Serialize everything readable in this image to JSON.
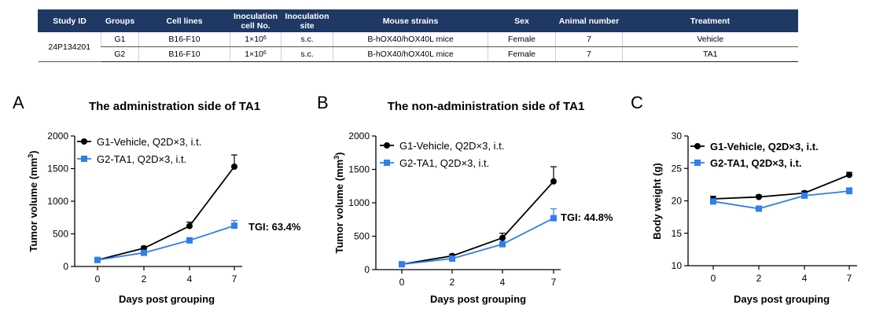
{
  "table": {
    "headers": [
      "Study ID",
      "Groups",
      "Cell lines",
      "Inoculation cell No.",
      "Inoculation site",
      "Mouse strains",
      "Sex",
      "Animal number",
      "Treatment"
    ],
    "study_id": "24P134201",
    "rows": [
      {
        "group": "G1",
        "cell_line": "B16-F10",
        "cell_no": "1×10",
        "cell_no_exp": "6",
        "site": "s.c.",
        "strain": "B-hOX40/hOX40L mice",
        "sex": "Female",
        "animal_number": "7",
        "treatment": "Vehicle"
      },
      {
        "group": "G2",
        "cell_line": "B16-F10",
        "cell_no": "1×10",
        "cell_no_exp": "6",
        "site": "s.c.",
        "strain": "B-hOX40/hOX40L mice",
        "sex": "Female",
        "animal_number": "7",
        "treatment": "TA1"
      }
    ]
  },
  "colors": {
    "vehicle": "#000000",
    "ta1": "#2f7fec",
    "header_bg": "#1f3864"
  },
  "chart_data": [
    {
      "panel_letter": "A",
      "type": "line",
      "title": "The administration side of TA1",
      "xlabel": "Days post grouping",
      "ylabel": "Tumor volume (mm",
      "ylabel_sup": "3",
      "ylabel_end": ")",
      "x": [
        0,
        2,
        4,
        7
      ],
      "xticks": [
        "0",
        "2",
        "4",
        "7"
      ],
      "ylim": [
        0,
        2000
      ],
      "yticks": [
        "0",
        "500",
        "1000",
        "1500",
        "2000"
      ],
      "series": [
        {
          "name": "G1-Vehicle, Q2D×3, i.t.",
          "color": "#000000",
          "marker": "circle",
          "values": [
            100,
            280,
            620,
            1530
          ],
          "err": [
            20,
            30,
            60,
            180
          ]
        },
        {
          "name": "G2-TA1, Q2D×3, i.t.",
          "color": "#2f7fec",
          "marker": "square",
          "values": [
            100,
            210,
            400,
            625
          ],
          "err": [
            15,
            25,
            40,
            80
          ]
        }
      ],
      "annotation": "TGI: 63.4%",
      "legend_bold": false
    },
    {
      "panel_letter": "B",
      "type": "line",
      "title": "The non-administration side of TA1",
      "xlabel": "Days post grouping",
      "ylabel": "Tumor volume (mm",
      "ylabel_sup": "3",
      "ylabel_end": ")",
      "x": [
        0,
        2,
        4,
        7
      ],
      "xticks": [
        "0",
        "2",
        "4",
        "7"
      ],
      "ylim": [
        0,
        2000
      ],
      "yticks": [
        "0",
        "500",
        "1000",
        "1500",
        "2000"
      ],
      "series": [
        {
          "name": "G1-Vehicle, Q2D×3, i.t.",
          "color": "#000000",
          "marker": "circle",
          "values": [
            80,
            205,
            475,
            1320
          ],
          "err": [
            15,
            25,
            70,
            220
          ]
        },
        {
          "name": "G2-TA1, Q2D×3, i.t.",
          "color": "#2f7fec",
          "marker": "square",
          "values": [
            80,
            165,
            380,
            770
          ],
          "err": [
            15,
            20,
            40,
            140
          ]
        }
      ],
      "annotation": "TGI: 44.8%",
      "legend_bold": false
    },
    {
      "panel_letter": "C",
      "type": "line",
      "title": "",
      "xlabel": "Days post grouping",
      "ylabel": "Body weight (g)",
      "ylabel_sup": "",
      "ylabel_end": "",
      "x": [
        0,
        2,
        4,
        7
      ],
      "xticks": [
        "0",
        "2",
        "4",
        "7"
      ],
      "ylim": [
        10,
        30
      ],
      "yticks": [
        "10",
        "15",
        "20",
        "25",
        "30"
      ],
      "series": [
        {
          "name": "G1-Vehicle, Q2D×3, i.t.",
          "color": "#000000",
          "marker": "circle",
          "values": [
            20.3,
            20.6,
            21.2,
            24.0
          ],
          "err": [
            0.4,
            0.3,
            0.3,
            0.4
          ]
        },
        {
          "name": "G2-TA1, Q2D×3, i.t.",
          "color": "#2f7fec",
          "marker": "square",
          "values": [
            19.9,
            18.8,
            20.8,
            21.5
          ],
          "err": [
            0.4,
            0.3,
            0.3,
            0.5
          ]
        }
      ],
      "annotation": "",
      "legend_bold": true
    }
  ]
}
